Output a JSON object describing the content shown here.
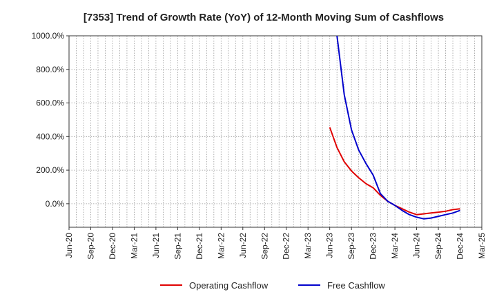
{
  "chart_data": {
    "type": "line",
    "title": "[7353]  Trend of Growth Rate (YoY) of 12-Month Moving Sum of Cashflows",
    "xlabel": "",
    "ylabel": "",
    "x_ticks": [
      "Jun-20",
      "Sep-20",
      "Dec-20",
      "Mar-21",
      "Jun-21",
      "Sep-21",
      "Dec-21",
      "Mar-22",
      "Jun-22",
      "Sep-22",
      "Dec-22",
      "Mar-23",
      "Jun-23",
      "Sep-23",
      "Dec-23",
      "Mar-24",
      "Jun-24",
      "Sep-24",
      "Dec-24",
      "Mar-25"
    ],
    "y_ticks": [
      "0.0%",
      "200.0%",
      "400.0%",
      "600.0%",
      "800.0%",
      "1000.0%"
    ],
    "y_tick_values": [
      0,
      200,
      400,
      600,
      800,
      1000
    ],
    "ylim": [
      -140,
      1000
    ],
    "xlim": [
      "Jun-20",
      "Mar-25"
    ],
    "grid": true,
    "legend_position": "bottom",
    "series": [
      {
        "name": "Operating Cashflow",
        "color": "#e00000",
        "x": [
          "Jun-23",
          "Jul-23",
          "Aug-23",
          "Sep-23",
          "Oct-23",
          "Nov-23",
          "Dec-23",
          "Jan-24",
          "Feb-24",
          "Mar-24",
          "Apr-24",
          "May-24",
          "Jun-24",
          "Jul-24",
          "Aug-24",
          "Sep-24",
          "Oct-24",
          "Nov-24",
          "Dec-24"
        ],
        "values": [
          455,
          335,
          250,
          195,
          155,
          120,
          95,
          50,
          15,
          -10,
          -30,
          -50,
          -65,
          -60,
          -55,
          -50,
          -45,
          -35,
          -30
        ]
      },
      {
        "name": "Free Cashflow",
        "color": "#0000cc",
        "x": [
          "Jul-23",
          "Aug-23",
          "Sep-23",
          "Oct-23",
          "Nov-23",
          "Dec-23",
          "Jan-24",
          "Feb-24",
          "Mar-24",
          "Apr-24",
          "May-24",
          "Jun-24",
          "Jul-24",
          "Aug-24",
          "Sep-24",
          "Oct-24",
          "Nov-24",
          "Dec-24"
        ],
        "values": [
          1000,
          650,
          440,
          320,
          240,
          170,
          60,
          15,
          -10,
          -40,
          -65,
          -80,
          -90,
          -85,
          -75,
          -65,
          -55,
          -40
        ]
      }
    ]
  }
}
